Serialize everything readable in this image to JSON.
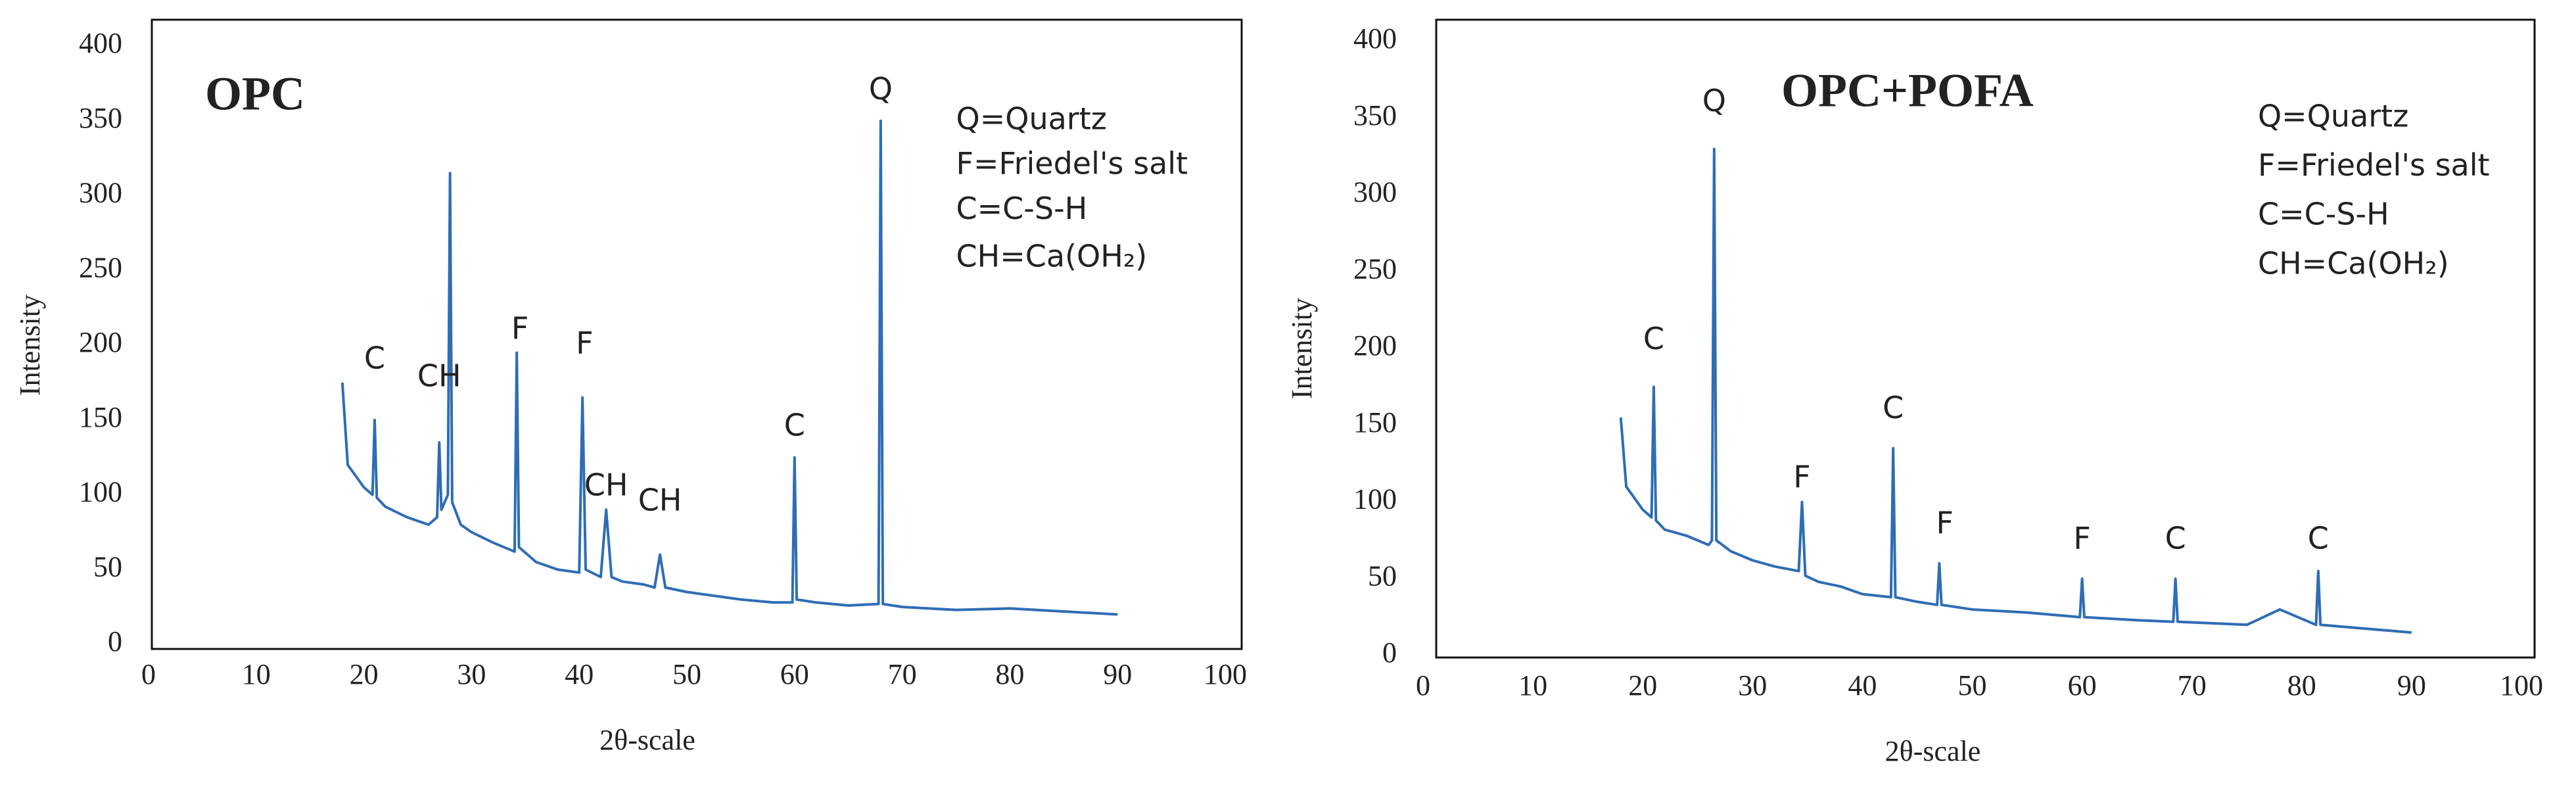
{
  "chart_data": [
    {
      "type": "line",
      "title": "OPC",
      "xlabel": "2θ-scale",
      "ylabel": "Intensity",
      "xlim": [
        0,
        100
      ],
      "xticks": [
        0,
        10,
        20,
        30,
        40,
        50,
        60,
        70,
        80,
        90,
        100
      ],
      "ylim": [
        0,
        400
      ],
      "yticks": [
        0,
        50,
        100,
        150,
        200,
        250,
        300,
        350,
        400
      ],
      "x": [
        18,
        18.5,
        19,
        20,
        20.8,
        21,
        21.2,
        22,
        24,
        26,
        26.8,
        27,
        27.2,
        27.8,
        28,
        28.2,
        29,
        30,
        32,
        34,
        34.2,
        34.4,
        36,
        38,
        40,
        40.3,
        40.6,
        42,
        42.5,
        43,
        44,
        46,
        47,
        47.5,
        48,
        50,
        52,
        55,
        58,
        59.8,
        60,
        60.2,
        62,
        65,
        67.8,
        68,
        68.2,
        70,
        75,
        80,
        85,
        90
      ],
      "series": [
        {
          "color": "#2f6db5",
          "values": [
            175,
            120,
            115,
            105,
            100,
            150,
            98,
            92,
            85,
            80,
            85,
            135,
            90,
            100,
            315,
            95,
            80,
            75,
            68,
            62,
            195,
            65,
            55,
            50,
            48,
            165,
            50,
            45,
            90,
            45,
            42,
            40,
            38,
            60,
            38,
            35,
            33,
            30,
            28,
            28,
            125,
            30,
            28,
            26,
            27,
            350,
            27,
            25,
            23,
            24,
            22,
            20
          ]
        }
      ],
      "annotations": [
        {
          "text": "C",
          "x": 21,
          "y": 190
        },
        {
          "text": "CH",
          "x": 27,
          "y": 178
        },
        {
          "text": "F",
          "x": 34.5,
          "y": 210
        },
        {
          "text": "F",
          "x": 40.5,
          "y": 200
        },
        {
          "text": "CH",
          "x": 42.5,
          "y": 105
        },
        {
          "text": "CH",
          "x": 47.5,
          "y": 95
        },
        {
          "text": "C",
          "x": 60,
          "y": 145
        },
        {
          "text": "Q",
          "x": 68,
          "y": 370
        }
      ],
      "key": [
        {
          "text": "Q=Quartz",
          "x": 75,
          "y": 350
        },
        {
          "text": "F=Friedel's salt",
          "x": 75,
          "y": 320
        },
        {
          "text": "C=C-S-H",
          "x": 75,
          "y": 290
        },
        {
          "text": "CH=Ca(OH₂)",
          "x": 75,
          "y": 258
        }
      ]
    },
    {
      "type": "line",
      "title": "OPC+POFA",
      "xlabel": "2θ-scale",
      "ylabel": "Intensity",
      "xlim": [
        0,
        100
      ],
      "xticks": [
        0,
        10,
        20,
        30,
        40,
        50,
        60,
        70,
        80,
        90,
        100
      ],
      "ylim": [
        0,
        400
      ],
      "yticks": [
        0,
        50,
        100,
        150,
        200,
        250,
        300,
        350,
        400
      ],
      "x": [
        18,
        18.5,
        19,
        20,
        20.8,
        21,
        21.2,
        22,
        24,
        26,
        26.3,
        26.5,
        26.7,
        28,
        30,
        32,
        34.2,
        34.5,
        34.8,
        36,
        38,
        40,
        42.6,
        42.8,
        43,
        45,
        46.8,
        47,
        47.2,
        50,
        55,
        59.8,
        60,
        60.2,
        65,
        68.3,
        68.5,
        68.7,
        75,
        78,
        81.3,
        81.5,
        81.7,
        85,
        90
      ],
      "series": [
        {
          "color": "#2f6db5",
          "values": [
            155,
            110,
            105,
            95,
            90,
            175,
            88,
            82,
            78,
            72,
            75,
            330,
            75,
            68,
            62,
            58,
            55,
            100,
            52,
            48,
            45,
            40,
            38,
            135,
            38,
            35,
            33,
            60,
            33,
            30,
            28,
            25,
            50,
            25,
            23,
            22,
            50,
            22,
            20,
            30,
            20,
            55,
            20,
            18,
            15
          ]
        }
      ],
      "annotations": [
        {
          "text": "C",
          "x": 21,
          "y": 205
        },
        {
          "text": "Q",
          "x": 26.5,
          "y": 360
        },
        {
          "text": "F",
          "x": 34.5,
          "y": 115
        },
        {
          "text": "C",
          "x": 42.8,
          "y": 160
        },
        {
          "text": "F",
          "x": 47.5,
          "y": 85
        },
        {
          "text": "F",
          "x": 60,
          "y": 75
        },
        {
          "text": "C",
          "x": 68.5,
          "y": 75
        },
        {
          "text": "C",
          "x": 81.5,
          "y": 75
        }
      ],
      "key": [
        {
          "text": "Q=Quartz",
          "x": 76,
          "y": 350
        },
        {
          "text": "F=Friedel's salt",
          "x": 76,
          "y": 318
        },
        {
          "text": "C=C-S-H",
          "x": 76,
          "y": 286
        },
        {
          "text": "CH=Ca(OH₂)",
          "x": 76,
          "y": 254
        }
      ]
    }
  ]
}
